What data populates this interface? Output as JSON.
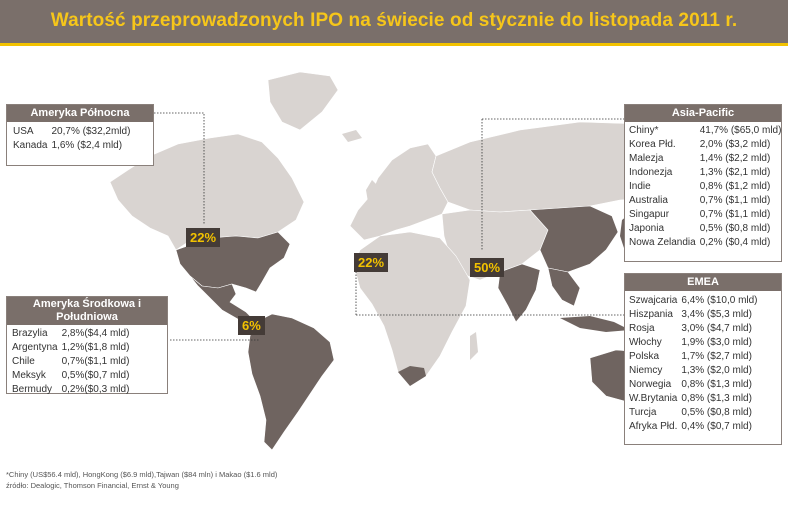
{
  "title": "Wartość przeprowadzonych IPO na świecie od stycznie do listopada 2011 r.",
  "colors": {
    "header_bg": "#7a6f6a",
    "title": "#f6c61a",
    "accent_line": "#f2c200",
    "land_light": "#d9d4d1",
    "land_dark": "#6f6460",
    "badge_bg": "#443b37",
    "badge_text": "#f2c200"
  },
  "regions": {
    "north_america": {
      "title": "Ameryka Północna",
      "rows": [
        {
          "name": "USA",
          "value": "20,7% ($32,2mld)"
        },
        {
          "name": "Kanada",
          "value": "1,6% ($2,4 mld)"
        }
      ],
      "share": "22%"
    },
    "south_america": {
      "title": "Ameryka Środkowa i Południowa",
      "rows": [
        {
          "name": "Brazylia",
          "value": "2,8%($4,4 mld)"
        },
        {
          "name": "Argentyna",
          "value": "1,2%($1,8 mld)"
        },
        {
          "name": "Chile",
          "value": "0,7%($1,1 mld)"
        },
        {
          "name": "Meksyk",
          "value": "0,5%($0,7 mld)"
        },
        {
          "name": "Bermudy",
          "value": "0,2%($0,3 mld)"
        }
      ],
      "share": "6%"
    },
    "asia_pacific": {
      "title": "Asia-Pacific",
      "rows": [
        {
          "name": "Chiny*",
          "value": "41,7% ($65,0 mld)"
        },
        {
          "name": "Korea Płd.",
          "value": "2,0% ($3,2 mld)"
        },
        {
          "name": "Malezja",
          "value": "1,4% ($2,2 mld)"
        },
        {
          "name": "Indonezja",
          "value": "1,3% ($2,1 mld)"
        },
        {
          "name": "Indie",
          "value": "0,8% ($1,2 mld)"
        },
        {
          "name": "Australia",
          "value": "0,7% ($1,1 mld)"
        },
        {
          "name": "Singapur",
          "value": "0,7% ($1,1 mld)"
        },
        {
          "name": "Japonia",
          "value": "0,5% ($0,8 mld)"
        },
        {
          "name": "Nowa Zelandia",
          "value": "0,2% ($0,4 mld)"
        }
      ],
      "share": "50%"
    },
    "emea": {
      "title": "EMEA",
      "rows": [
        {
          "name": "Szwajcaria",
          "value": "6,4% ($10,0 mld)"
        },
        {
          "name": "Hiszpania",
          "value": "3,4% ($5,3 mld)"
        },
        {
          "name": "Rosja",
          "value": "3,0% ($4,7 mld)"
        },
        {
          "name": "Włochy",
          "value": "1,9% ($3,0 mld)"
        },
        {
          "name": "Polska",
          "value": "1,7% ($2,7 mld)"
        },
        {
          "name": "Niemcy",
          "value": "1,3% ($2,0 mld)"
        },
        {
          "name": "Norwegia",
          "value": "0,8% ($1,3 mld)"
        },
        {
          "name": "W.Brytania",
          "value": "0,8% ($1,3 mld)"
        },
        {
          "name": "Turcja",
          "value": "0,5% ($0,8 mld)"
        },
        {
          "name": "Afryka Płd.",
          "value": "0,4% ($0,7 mld)"
        }
      ],
      "share": "22%"
    }
  },
  "footnote": "*Chiny (US$56.4 mld), HongKong ($6.9 mld),Tajwan ($84 mln) i  Makao ($1.6 mld)",
  "source": "źródło: Dealogic, Thomson Financial, Ernst & Young"
}
